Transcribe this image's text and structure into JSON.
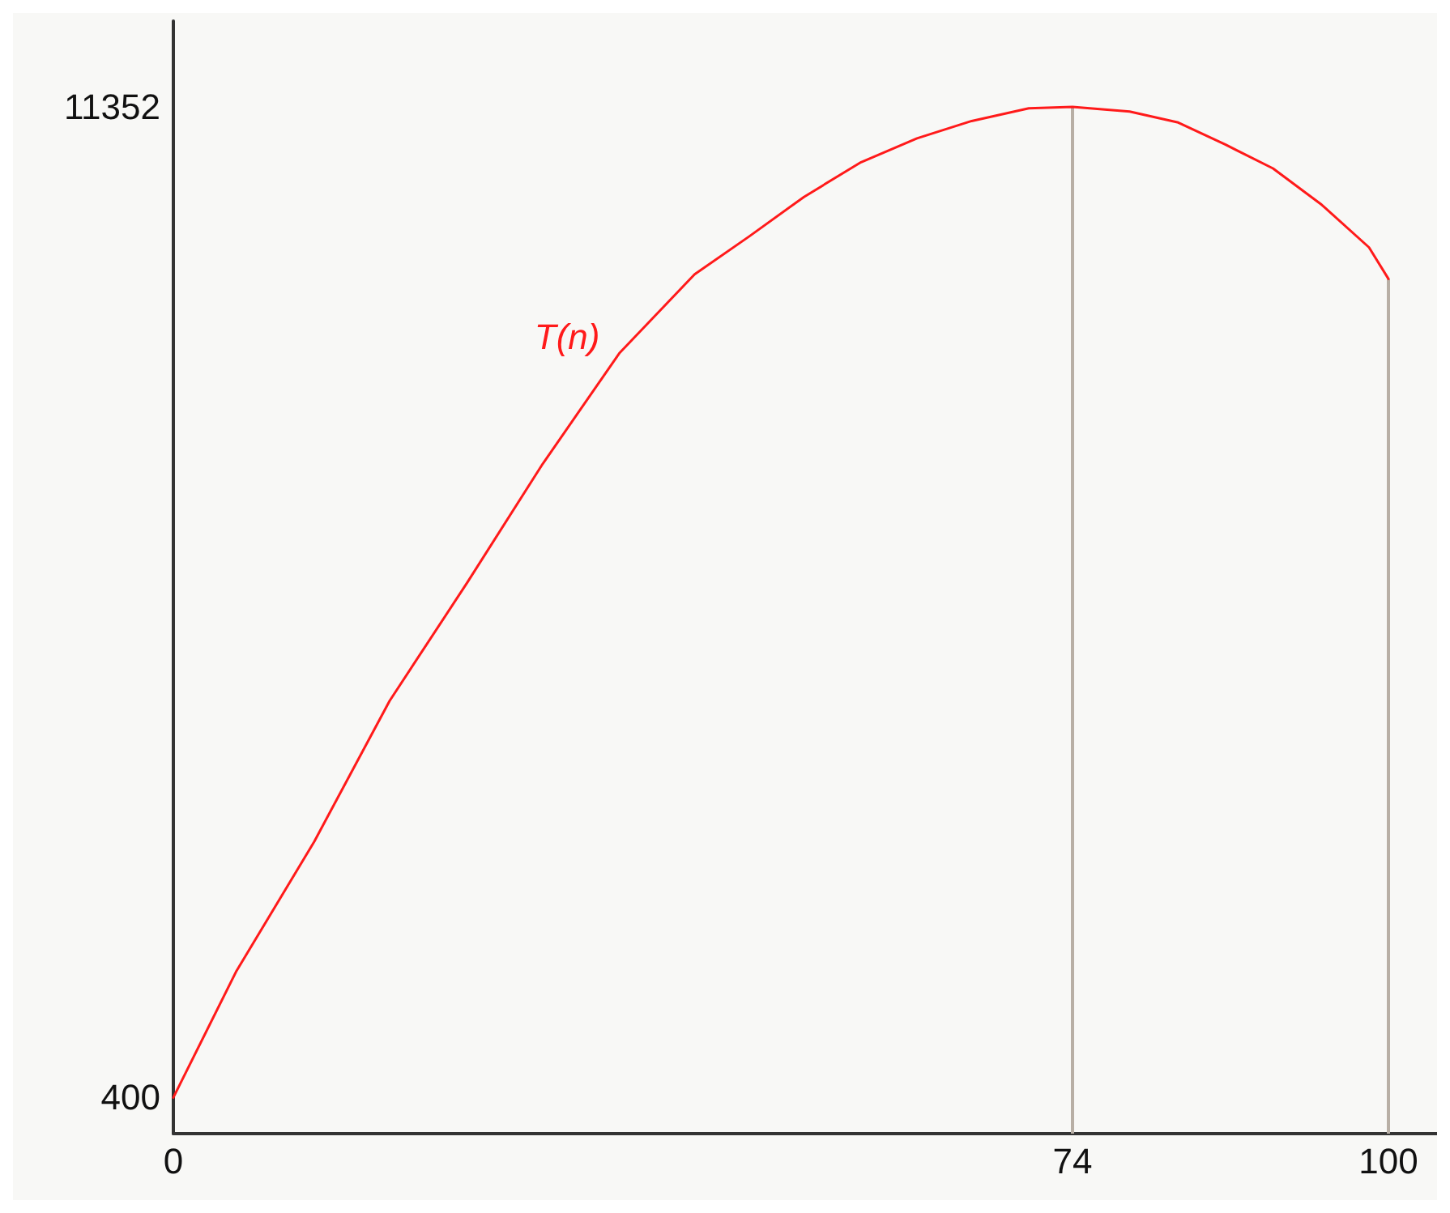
{
  "chart_data": {
    "type": "line",
    "x": [
      0,
      5.2,
      11.6,
      17.8,
      24.2,
      30.4,
      36.7,
      42.9,
      47.4,
      51.9,
      56.6,
      61.2,
      65.7,
      70.4,
      74,
      78.7,
      82.7,
      86.6,
      90.5,
      94.5,
      98.4,
      100
    ],
    "series": [
      {
        "name": "T(n)",
        "color": "#ff1a1a",
        "values": [
          400,
          1800,
          3230,
          4785,
          6095,
          7405,
          8627,
          9500,
          9920,
          10356,
          10740,
          11003,
          11195,
          11335,
          11352,
          11300,
          11178,
          10933,
          10671,
          10270,
          9798,
          9450
        ]
      }
    ],
    "xlim": [
      0,
      104
    ],
    "xticks": [
      0,
      74,
      100
    ],
    "ylim": [
      0,
      12300
    ],
    "yticks": [
      400,
      11352
    ],
    "ref_lines": [
      {
        "axis": "x",
        "value": 74,
        "color": "#b8afa5"
      },
      {
        "axis": "x",
        "value": 100,
        "color": "#b8afa5"
      }
    ],
    "grid": false,
    "legend": false,
    "marker": "none",
    "line_style": "solid"
  }
}
